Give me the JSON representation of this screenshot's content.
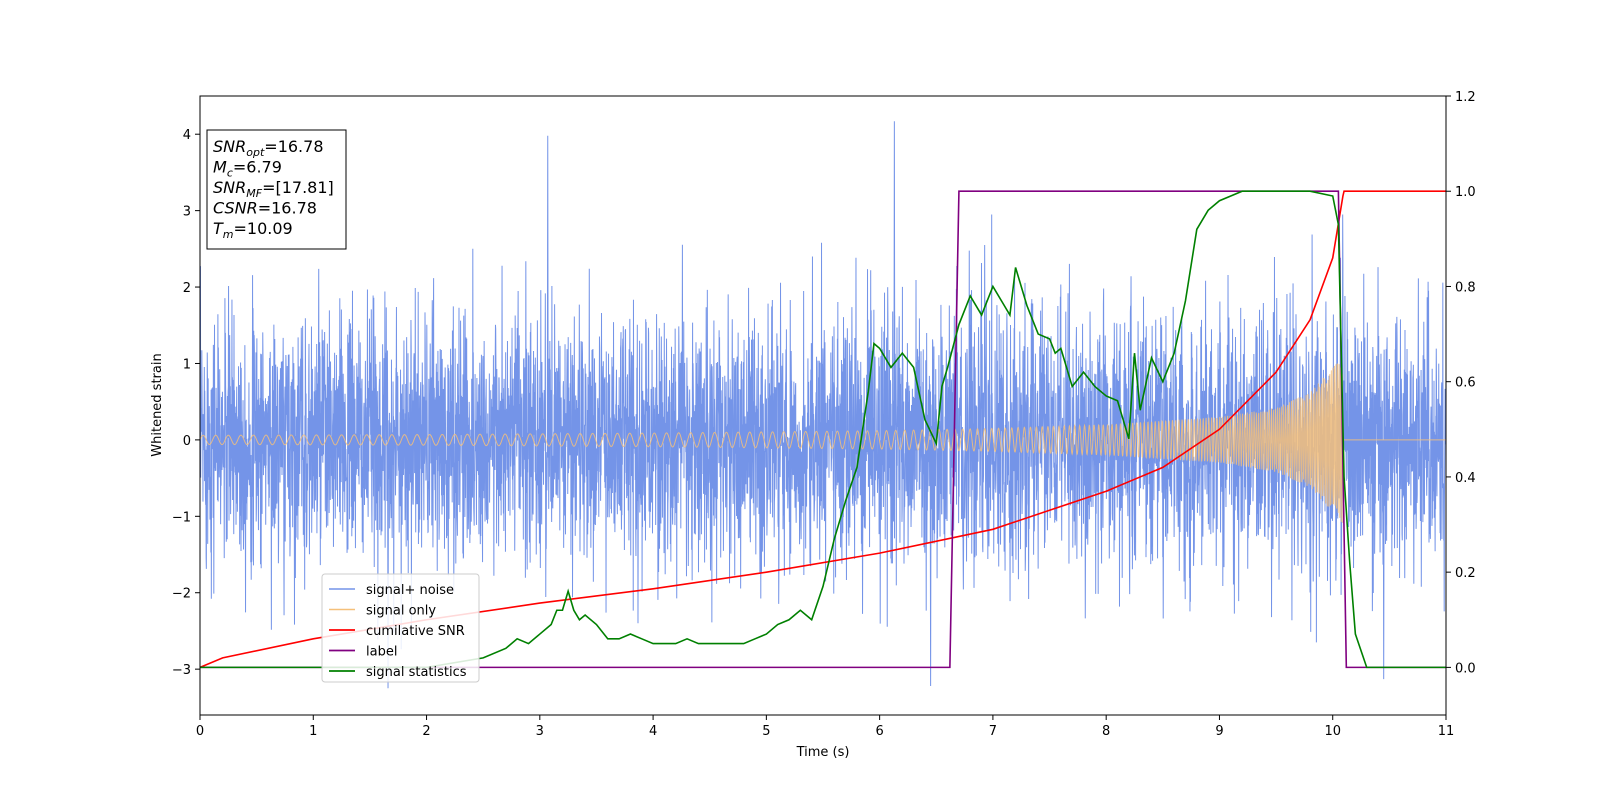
{
  "chart_data": {
    "type": "line",
    "title": "",
    "xlabel": "Time (s)",
    "ylabel": "Whitened strain",
    "xlim": [
      0,
      11
    ],
    "ylim": [
      -3.6,
      4.5
    ],
    "y2lim": [
      -0.1,
      1.2
    ],
    "x_ticks": [
      "0",
      "1",
      "2",
      "3",
      "4",
      "5",
      "6",
      "7",
      "8",
      "9",
      "10",
      "11"
    ],
    "y_ticks": [
      "−3",
      "−2",
      "−1",
      "0",
      "1",
      "2",
      "3",
      "4"
    ],
    "y2_ticks": [
      "0.0",
      "0.2",
      "0.4",
      "0.6",
      "0.8",
      "1.0",
      "1.2"
    ],
    "grid": false,
    "legend_position": "lower-left",
    "info_box": {
      "lines": [
        {
          "main": "SNR",
          "sub": "opt",
          "rest": "=16.78"
        },
        {
          "main": "M",
          "sub": "c",
          "rest": "=6.79"
        },
        {
          "main": "SNR",
          "sub": "MF",
          "rest": "=[17.81]"
        },
        {
          "main": "CSNR",
          "sub": "",
          "rest": "=16.78"
        },
        {
          "main": "T",
          "sub": "m",
          "rest": "=10.09"
        }
      ]
    },
    "series": [
      {
        "name": "signal+ noise",
        "color": "#7494e8",
        "axis": "left",
        "noise_std": 0.8,
        "peaks": [
          {
            "x": 3.07,
            "y": 3.98
          },
          {
            "x": 6.13,
            "y": 4.17
          },
          {
            "x": 6.45,
            "y": -3.22
          },
          {
            "x": 1.66,
            "y": -3.25
          },
          {
            "x": 10.45,
            "y": -3.13
          }
        ]
      },
      {
        "name": "signal only",
        "color": "#f5c07a",
        "axis": "left",
        "envelope": {
          "x": [
            0,
            2,
            4,
            6,
            7,
            8,
            9,
            9.5,
            9.8,
            10.0,
            10.09
          ],
          "y": [
            0.06,
            0.07,
            0.09,
            0.12,
            0.15,
            0.2,
            0.3,
            0.42,
            0.62,
            0.95,
            1.1
          ]
        }
      },
      {
        "name": "cumilative SNR",
        "color": "#ff0000",
        "axis": "right",
        "x": [
          0,
          0.2,
          1,
          2,
          3,
          4,
          5,
          6,
          7,
          8,
          8.5,
          9,
          9.5,
          9.8,
          10,
          10.09,
          10.1,
          11
        ],
        "y": [
          0.0,
          0.02,
          0.06,
          0.1,
          0.135,
          0.165,
          0.2,
          0.24,
          0.29,
          0.37,
          0.42,
          0.5,
          0.62,
          0.73,
          0.86,
          0.99,
          1.0,
          1.0
        ]
      },
      {
        "name": "label",
        "color": "#800080",
        "axis": "right",
        "x": [
          0,
          6.62,
          6.7,
          10.05,
          10.12,
          11
        ],
        "y": [
          0.0,
          0.0,
          1.0,
          1.0,
          0.0,
          0.0
        ]
      },
      {
        "name": "signal statistics",
        "color": "#008000",
        "axis": "right",
        "x": [
          0,
          1,
          2,
          2.5,
          2.7,
          2.8,
          2.9,
          3.0,
          3.1,
          3.15,
          3.2,
          3.25,
          3.3,
          3.35,
          3.4,
          3.5,
          3.6,
          3.7,
          3.8,
          3.9,
          4.0,
          4.1,
          4.2,
          4.3,
          4.4,
          4.5,
          4.6,
          4.8,
          4.9,
          5.0,
          5.1,
          5.2,
          5.3,
          5.4,
          5.5,
          5.6,
          5.7,
          5.8,
          5.9,
          5.95,
          6.0,
          6.1,
          6.2,
          6.3,
          6.4,
          6.5,
          6.55,
          6.6,
          6.7,
          6.8,
          6.9,
          7.0,
          7.1,
          7.15,
          7.2,
          7.3,
          7.4,
          7.5,
          7.55,
          7.6,
          7.7,
          7.8,
          7.9,
          8.0,
          8.1,
          8.2,
          8.25,
          8.3,
          8.4,
          8.5,
          8.6,
          8.7,
          8.8,
          8.9,
          9.0,
          9.1,
          9.2,
          9.5,
          9.8,
          10.0,
          10.05,
          10.1,
          10.15,
          10.2,
          10.3,
          11
        ],
        "y": [
          0.0,
          0.0,
          0.0,
          0.02,
          0.04,
          0.06,
          0.05,
          0.07,
          0.09,
          0.12,
          0.12,
          0.16,
          0.12,
          0.1,
          0.11,
          0.09,
          0.06,
          0.06,
          0.07,
          0.06,
          0.05,
          0.05,
          0.05,
          0.06,
          0.05,
          0.05,
          0.05,
          0.05,
          0.06,
          0.07,
          0.09,
          0.1,
          0.12,
          0.1,
          0.17,
          0.27,
          0.35,
          0.42,
          0.58,
          0.68,
          0.67,
          0.63,
          0.66,
          0.63,
          0.52,
          0.47,
          0.59,
          0.63,
          0.72,
          0.78,
          0.74,
          0.8,
          0.76,
          0.74,
          0.84,
          0.76,
          0.7,
          0.69,
          0.66,
          0.67,
          0.59,
          0.62,
          0.59,
          0.57,
          0.56,
          0.48,
          0.66,
          0.54,
          0.65,
          0.6,
          0.66,
          0.77,
          0.92,
          0.96,
          0.98,
          0.99,
          1.0,
          1.0,
          1.0,
          0.99,
          0.93,
          0.4,
          0.22,
          0.07,
          0.0,
          0.0
        ]
      }
    ]
  }
}
